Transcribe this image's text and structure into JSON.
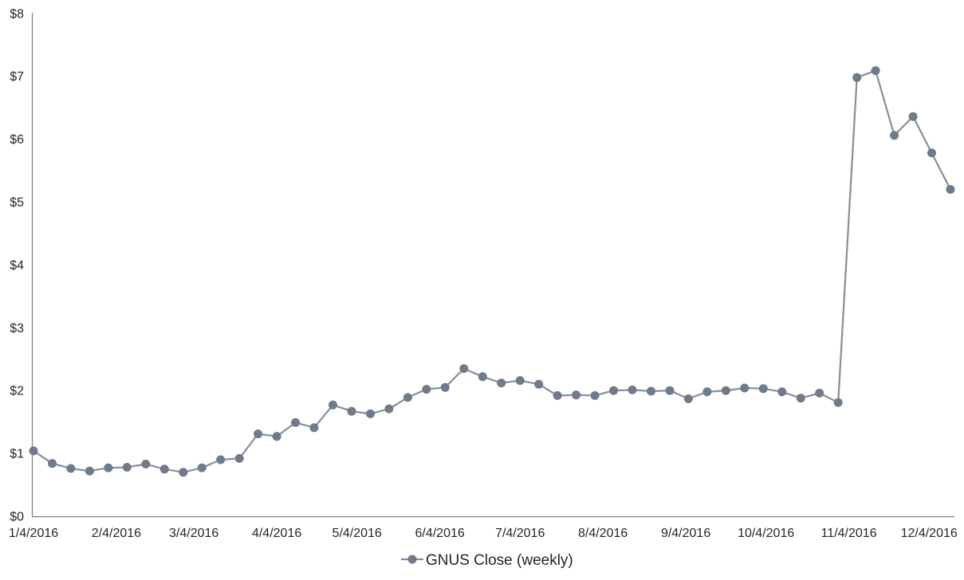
{
  "chart_data": {
    "type": "line",
    "title": "",
    "xlabel": "",
    "ylabel": "",
    "ylim": [
      0,
      8
    ],
    "grid": "off",
    "legend_position": "bottom-center",
    "legend": {
      "label": "GNUS Close (weekly)"
    },
    "y_ticks": [
      "$0",
      "$1",
      "$2",
      "$3",
      "$4",
      "$5",
      "$6",
      "$7",
      "$8"
    ],
    "x_ticks": [
      "1/4/2016",
      "2/4/2016",
      "3/4/2016",
      "4/4/2016",
      "5/4/2016",
      "6/4/2016",
      "7/4/2016",
      "8/4/2016",
      "9/4/2016",
      "10/4/2016",
      "11/4/2016",
      "12/4/2016"
    ],
    "series": [
      {
        "name": "GNUS Close (weekly)",
        "x_dates": [
          "1/4/2016",
          "1/11/2016",
          "1/18/2016",
          "1/25/2016",
          "2/1/2016",
          "2/8/2016",
          "2/15/2016",
          "2/22/2016",
          "2/29/2016",
          "3/7/2016",
          "3/14/2016",
          "3/21/2016",
          "3/28/2016",
          "4/4/2016",
          "4/11/2016",
          "4/18/2016",
          "4/25/2016",
          "5/2/2016",
          "5/9/2016",
          "5/16/2016",
          "5/23/2016",
          "5/30/2016",
          "6/6/2016",
          "6/13/2016",
          "6/20/2016",
          "6/27/2016",
          "7/4/2016",
          "7/11/2016",
          "7/18/2016",
          "7/25/2016",
          "8/1/2016",
          "8/8/2016",
          "8/15/2016",
          "8/22/2016",
          "8/29/2016",
          "9/5/2016",
          "9/12/2016",
          "9/19/2016",
          "9/26/2016",
          "10/3/2016",
          "10/10/2016",
          "10/17/2016",
          "10/24/2016",
          "10/31/2016",
          "11/7/2016",
          "11/14/2016",
          "11/21/2016",
          "11/28/2016",
          "12/5/2016",
          "12/12/2016"
        ],
        "values": [
          1.04,
          0.84,
          0.76,
          0.72,
          0.77,
          0.78,
          0.83,
          0.75,
          0.7,
          0.77,
          0.9,
          0.92,
          1.31,
          1.27,
          1.49,
          1.41,
          1.77,
          1.67,
          1.63,
          1.71,
          1.89,
          2.02,
          2.05,
          2.35,
          2.22,
          2.12,
          2.16,
          2.1,
          1.92,
          1.93,
          1.92,
          2.0,
          2.01,
          1.99,
          2.0,
          1.87,
          1.98,
          2.0,
          2.04,
          2.03,
          1.98,
          1.88,
          1.96,
          1.81,
          6.98,
          7.09,
          6.06,
          6.36,
          5.78,
          5.2
        ]
      }
    ],
    "colors": {
      "line": "#8A9096",
      "marker": "#6F7B8A",
      "axis": "#808080",
      "tick_text": "#262626",
      "background": "#FFFFFF"
    }
  }
}
